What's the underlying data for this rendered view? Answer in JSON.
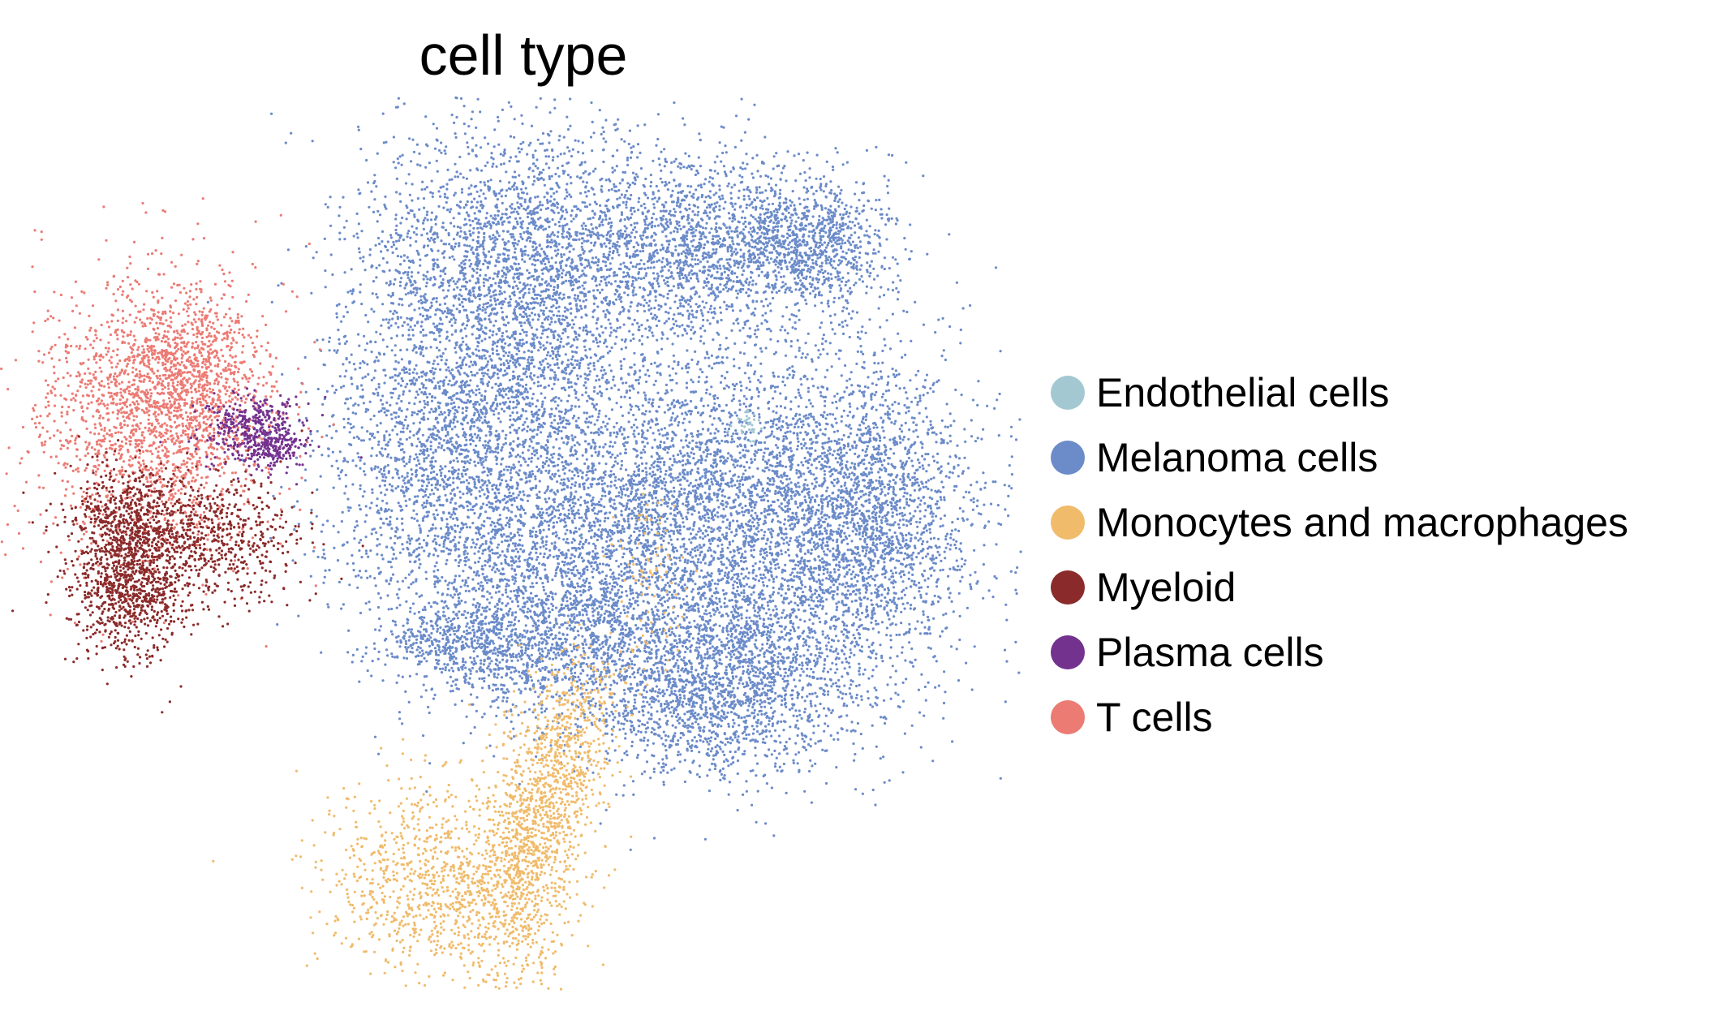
{
  "chart_data": {
    "type": "scatter",
    "title": "cell type",
    "xlabel": "",
    "ylabel": "",
    "grid": false,
    "axes_visible": false,
    "legend_position": "right",
    "series": [
      {
        "name": "Endothelial cells",
        "color": "#a3c8d2"
      },
      {
        "name": "Melanoma cells",
        "color": "#6b8bc9"
      },
      {
        "name": "Monocytes and macrophages",
        "color": "#f0bb6b"
      },
      {
        "name": "Myeloid",
        "color": "#8b2a2a"
      },
      {
        "name": "Plasma cells",
        "color": "#74328f"
      },
      {
        "name": "T cells",
        "color": "#ec7b74"
      }
    ]
  }
}
